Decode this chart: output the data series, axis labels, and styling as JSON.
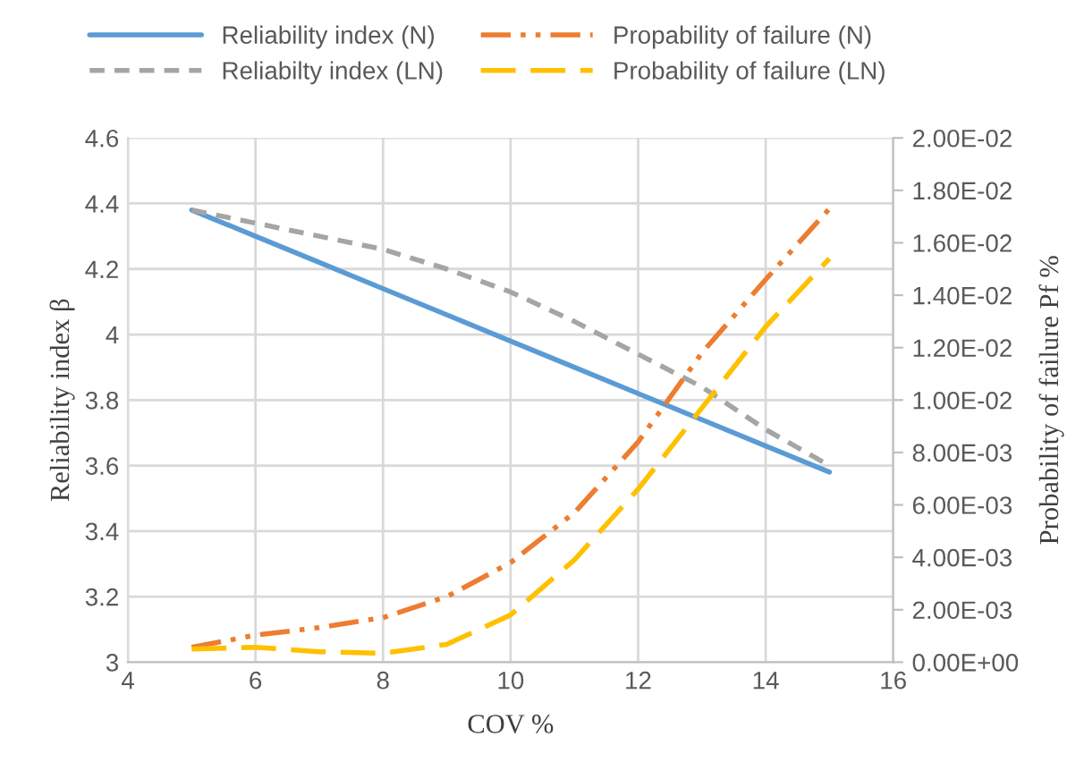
{
  "chart_data": {
    "type": "line",
    "xlabel": "COV %",
    "ylabel": "Reliability index β",
    "y2label": "Probability of failure Pf %",
    "x": [
      5,
      6,
      7,
      8,
      9,
      10,
      11,
      12,
      13,
      14,
      15
    ],
    "series": [
      {
        "name": "Reliability index (N)",
        "color": "#5b9bd5",
        "line_style": "solid",
        "values": [
          4.38,
          4.3,
          4.22,
          4.14,
          4.06,
          3.98,
          3.9,
          3.82,
          3.74,
          3.66,
          3.58
        ]
      },
      {
        "name": "Reliabilty index (LN)",
        "color": "#a5a5a5",
        "line_style": "dashed",
        "values": [
          4.38,
          4.34,
          4.3,
          4.26,
          4.2,
          4.13,
          4.04,
          3.94,
          3.84,
          3.71,
          3.6
        ]
      },
      {
        "name": "Propability of failure (N)",
        "color": "#ed7d31",
        "line_style": "dashdotdot",
        "axis": "y2",
        "values": [
          0.00057,
          0.00103,
          0.00132,
          0.0017,
          0.0025,
          0.0038,
          0.0057,
          0.0084,
          0.0118,
          0.0146,
          0.0173
        ]
      },
      {
        "name": "Probability of failure (LN)",
        "color": "#ffc000",
        "line_style": "longdash",
        "axis": "y2",
        "values": [
          0.0005,
          0.00057,
          0.0004,
          0.00034,
          0.00068,
          0.0018,
          0.0039,
          0.0066,
          0.0097,
          0.0128,
          0.0154
        ]
      }
    ],
    "xlim": [
      4,
      16
    ],
    "xticks": [
      4,
      6,
      8,
      10,
      12,
      14,
      16
    ],
    "ylim": [
      3,
      4.6
    ],
    "yticks": [
      3,
      3.2,
      3.4,
      3.6,
      3.8,
      4,
      4.2,
      4.4,
      4.6
    ],
    "y2lim": [
      0,
      0.02
    ],
    "y2ticks": [
      {
        "value": 0,
        "label": "0.00E+00"
      },
      {
        "value": 0.002,
        "label": "2.00E-03"
      },
      {
        "value": 0.004,
        "label": "4.00E-03"
      },
      {
        "value": 0.006,
        "label": "6.00E-03"
      },
      {
        "value": 0.008,
        "label": "8.00E-03"
      },
      {
        "value": 0.01,
        "label": "1.00E-02"
      },
      {
        "value": 0.012,
        "label": "1.20E-02"
      },
      {
        "value": 0.014,
        "label": "1.40E-02"
      },
      {
        "value": 0.016,
        "label": "1.60E-02"
      },
      {
        "value": 0.018,
        "label": "1.80E-02"
      },
      {
        "value": 0.02,
        "label": "2.00E-02"
      }
    ],
    "grid": true,
    "legend": "top",
    "marker": "none"
  }
}
